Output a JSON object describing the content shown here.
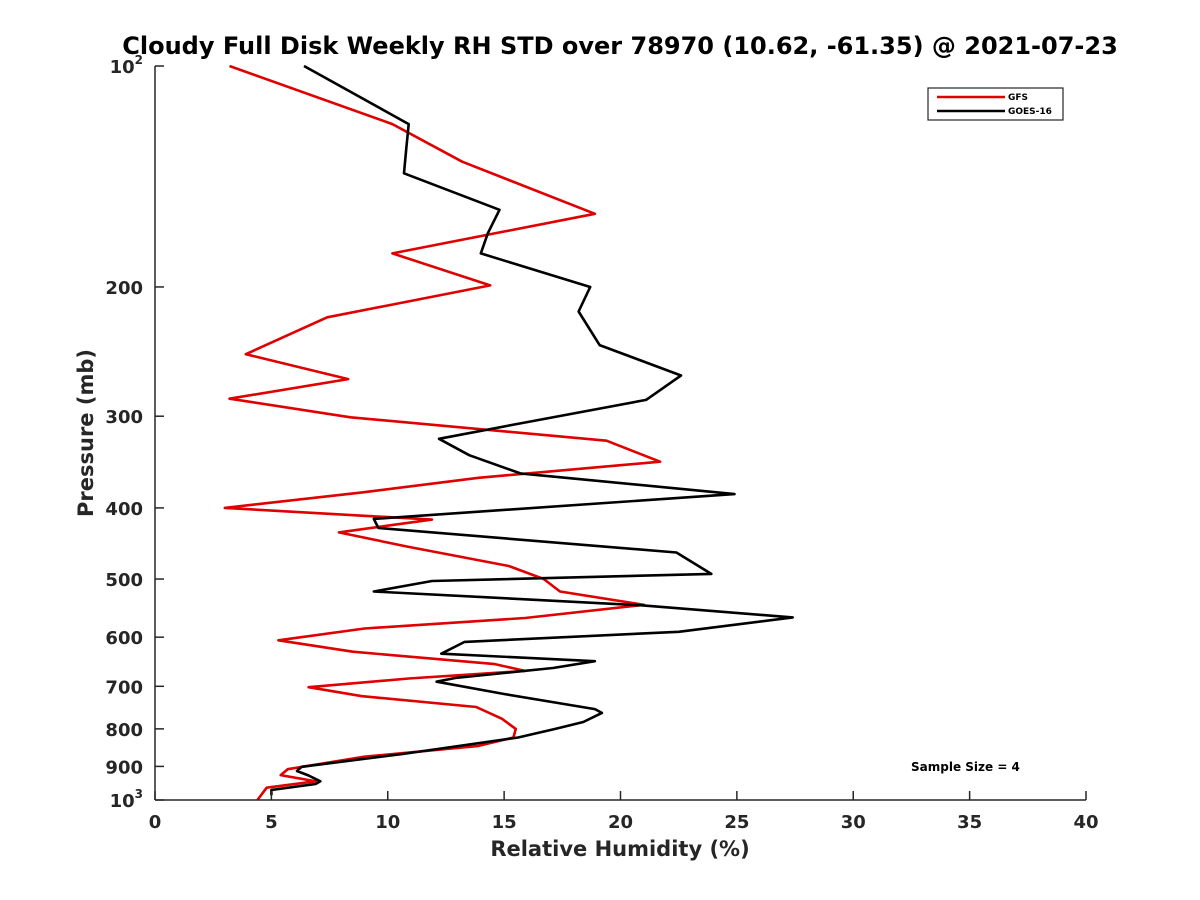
{
  "chart_data": {
    "type": "line",
    "title": "Cloudy Full Disk Weekly RH STD over 78970 (10.62, -61.35) @ 2021-07-23",
    "xlabel": "Relative Humidity (%)",
    "ylabel": "Pressure (mb)",
    "xlim": [
      0,
      40
    ],
    "ylim": [
      100,
      1000
    ],
    "y_scale": "log",
    "y_reversed": true,
    "x_ticks": [
      "0",
      "5",
      "10",
      "15",
      "20",
      "25",
      "30",
      "35",
      "40"
    ],
    "y_ticks": [
      {
        "value": 100,
        "base": "10",
        "sup": "2"
      },
      {
        "value": 200,
        "base": "200",
        "sup": ""
      },
      {
        "value": 300,
        "base": "300",
        "sup": ""
      },
      {
        "value": 400,
        "base": "400",
        "sup": ""
      },
      {
        "value": 500,
        "base": "500",
        "sup": ""
      },
      {
        "value": 600,
        "base": "600",
        "sup": ""
      },
      {
        "value": 700,
        "base": "700",
        "sup": ""
      },
      {
        "value": 800,
        "base": "800",
        "sup": ""
      },
      {
        "value": 900,
        "base": "900",
        "sup": ""
      },
      {
        "value": 1000,
        "base": "10",
        "sup": "3"
      }
    ],
    "grid": false,
    "legend_position": "top-right",
    "annotation": "Sample Size = 4",
    "series": [
      {
        "name": "GFS",
        "color": "#e00000",
        "points": [
          [
            3.2,
            100
          ],
          [
            10.2,
            120
          ],
          [
            13.2,
            135
          ],
          [
            18.9,
            159
          ],
          [
            10.2,
            180
          ],
          [
            14.4,
            199
          ],
          [
            7.4,
            220
          ],
          [
            3.9,
            247
          ],
          [
            8.3,
            267
          ],
          [
            3.2,
            284
          ],
          [
            8.4,
            301
          ],
          [
            19.4,
            324
          ],
          [
            21.7,
            346
          ],
          [
            13.9,
            364
          ],
          [
            8.9,
            381
          ],
          [
            3.0,
            400
          ],
          [
            11.9,
            415
          ],
          [
            7.9,
            432
          ],
          [
            10.9,
            452
          ],
          [
            15.2,
            480
          ],
          [
            16.7,
            500
          ],
          [
            17.4,
            520
          ],
          [
            21.0,
            542
          ],
          [
            15.9,
            565
          ],
          [
            9.0,
            584
          ],
          [
            5.3,
            606
          ],
          [
            8.5,
            628
          ],
          [
            14.6,
            653
          ],
          [
            15.9,
            667
          ],
          [
            10.9,
            683
          ],
          [
            6.6,
            702
          ],
          [
            8.9,
            722
          ],
          [
            13.8,
            747
          ],
          [
            14.9,
            775
          ],
          [
            15.5,
            800
          ],
          [
            15.4,
            822
          ],
          [
            13.9,
            844
          ],
          [
            9.0,
            873
          ],
          [
            5.7,
            908
          ],
          [
            5.4,
            925
          ],
          [
            6.9,
            943
          ],
          [
            4.8,
            962
          ],
          [
            4.4,
            1000
          ]
        ]
      },
      {
        "name": "GOES-16",
        "color": "#000000",
        "points": [
          [
            6.4,
            100
          ],
          [
            10.9,
            120
          ],
          [
            10.8,
            129
          ],
          [
            10.7,
            140
          ],
          [
            14.8,
            157
          ],
          [
            14.3,
            169
          ],
          [
            14.0,
            180
          ],
          [
            18.7,
            200
          ],
          [
            18.2,
            216
          ],
          [
            19.1,
            240
          ],
          [
            22.6,
            264
          ],
          [
            21.1,
            285
          ],
          [
            15.9,
            306
          ],
          [
            12.2,
            322
          ],
          [
            13.5,
            339
          ],
          [
            15.7,
            359
          ],
          [
            24.9,
            383
          ],
          [
            9.4,
            414
          ],
          [
            9.6,
            426
          ],
          [
            22.4,
            460
          ],
          [
            23.9,
            492
          ],
          [
            11.9,
            503
          ],
          [
            9.4,
            520
          ],
          [
            20.9,
            543
          ],
          [
            27.4,
            564
          ],
          [
            22.5,
            590
          ],
          [
            13.3,
            609
          ],
          [
            12.3,
            632
          ],
          [
            18.9,
            647
          ],
          [
            17.1,
            661
          ],
          [
            12.9,
            682
          ],
          [
            12.1,
            690
          ],
          [
            15.0,
            717
          ],
          [
            18.9,
            752
          ],
          [
            19.2,
            761
          ],
          [
            18.4,
            783
          ],
          [
            17.2,
            800
          ],
          [
            15.6,
            822
          ],
          [
            10.6,
            866
          ],
          [
            6.3,
            901
          ],
          [
            6.1,
            913
          ],
          [
            6.6,
            926
          ],
          [
            7.1,
            943
          ],
          [
            6.9,
            951
          ],
          [
            5.0,
            969
          ],
          [
            5.0,
            985
          ]
        ]
      }
    ]
  }
}
